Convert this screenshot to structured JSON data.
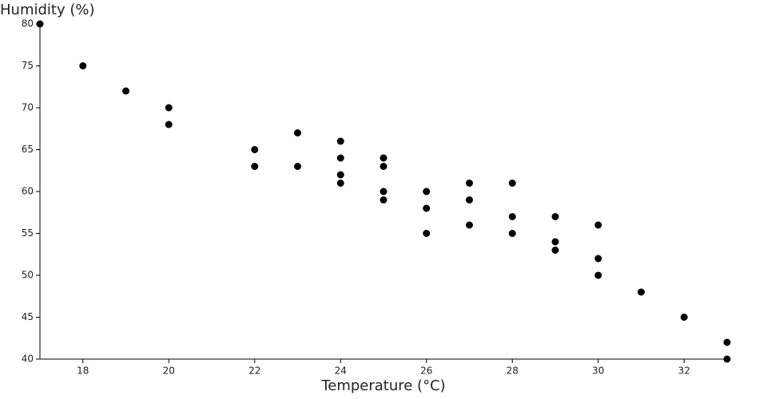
{
  "chart_data": {
    "type": "scatter",
    "x_label": "Temperature (°C)",
    "y_label": "Humidity (%)",
    "series": [
      {
        "color": "#000000",
        "x": [
          17,
          18,
          19,
          20,
          20,
          22,
          22,
          23,
          23,
          24,
          24,
          24,
          24,
          25,
          25,
          25,
          25,
          26,
          26,
          26,
          27,
          27,
          27,
          28,
          28,
          28,
          29,
          29,
          29,
          30,
          30,
          30,
          31,
          32,
          33,
          33
        ],
        "values": [
          80,
          75,
          72,
          70,
          68,
          65,
          63,
          67,
          63,
          66,
          64,
          62,
          61,
          64,
          63,
          60,
          59,
          60,
          58,
          55,
          61,
          59,
          56,
          61,
          57,
          55,
          57,
          54,
          53,
          56,
          52,
          50,
          48,
          45,
          42,
          40
        ]
      }
    ],
    "xlim": [
      17,
      33
    ],
    "xticks": [
      18,
      20,
      22,
      24,
      26,
      28,
      30,
      32
    ],
    "ylim": [
      40,
      80
    ],
    "yticks": [
      40,
      45,
      50,
      55,
      60,
      65,
      70,
      75,
      80
    ],
    "grid": false
  }
}
